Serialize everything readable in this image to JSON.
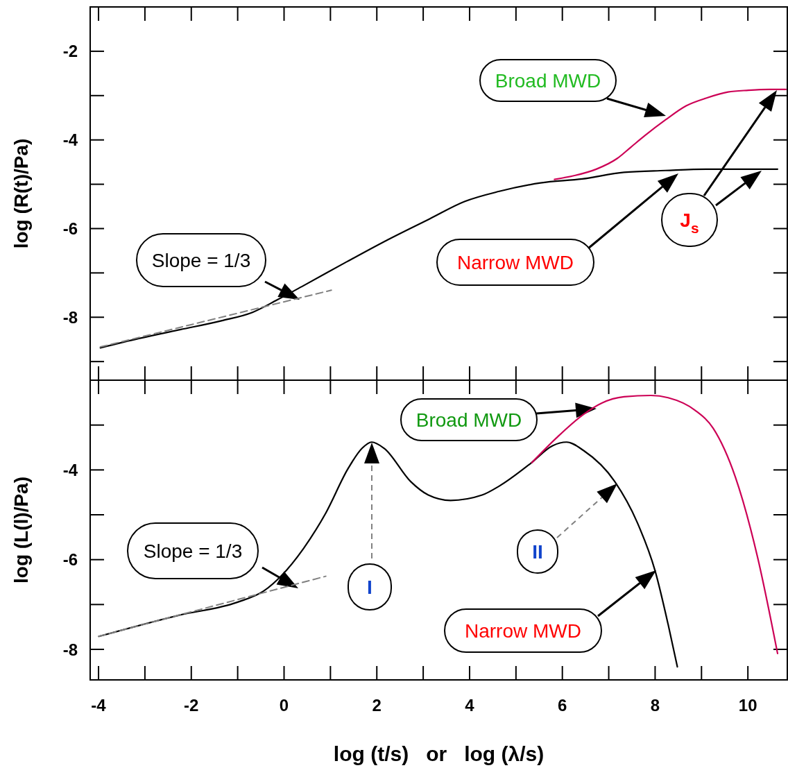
{
  "chart_data": [
    {
      "type": "line",
      "ylabel": "log (R(t)/Pa)",
      "xlim": [
        -4.18,
        10.85
      ],
      "ylim": [
        -9.42,
        -1.0
      ],
      "tick_labels": "y",
      "xticks": [
        -4,
        -2,
        0,
        2,
        4,
        6,
        8,
        10
      ],
      "yticks": [
        -8,
        -6,
        -4,
        -2
      ],
      "series": [
        {
          "color": "#000000",
          "x": [
            -3.96,
            -3.13,
            -2.24,
            -1.35,
            -0.68,
            -0.15,
            0.45,
            1.35,
            2.24,
            3.14,
            3.89,
            4.64,
            5.53,
            6.43,
            7.33,
            8.22,
            9.12,
            10.01,
            10.64
          ],
          "values": [
            -8.69,
            -8.48,
            -8.28,
            -8.08,
            -7.89,
            -7.61,
            -7.27,
            -6.75,
            -6.25,
            -5.78,
            -5.39,
            -5.16,
            -4.97,
            -4.88,
            -4.73,
            -4.69,
            -4.66,
            -4.66,
            -4.66
          ]
        },
        {
          "color": "#cc0055",
          "x": [
            5.83,
            6.28,
            6.73,
            7.18,
            7.47,
            7.77,
            8.22,
            8.67,
            9.12,
            9.57,
            10.01,
            10.46,
            10.82
          ],
          "values": [
            -4.89,
            -4.8,
            -4.66,
            -4.42,
            -4.17,
            -3.91,
            -3.55,
            -3.23,
            -3.05,
            -2.92,
            -2.88,
            -2.86,
            -2.86
          ]
        },
        {
          "color": "#808080",
          "line_style": "dashed",
          "x": [
            -3.96,
            1.02
          ],
          "values": [
            -8.67,
            -7.39
          ]
        }
      ],
      "annotations": [
        "Broad MWD",
        "Slope = 1/3",
        "Narrow MWD",
        "J$_{s}$"
      ]
    },
    {
      "type": "line",
      "ylabel": "log (L(l)/Pa)",
      "xlabel": "log (t/s)   or   log (λ/s)",
      "xlim": [
        -4.18,
        10.85
      ],
      "ylim": [
        -8.68,
        -2.0
      ],
      "xticks": [
        -4,
        -2,
        0,
        2,
        4,
        6,
        8,
        10
      ],
      "yticks": [
        -8,
        -6,
        -4
      ],
      "series": [
        {
          "color": "#000000",
          "x": [
            -3.99,
            -2.27,
            -1.01,
            -0.44,
            -0.06,
            0.42,
            0.9,
            1.38,
            1.68,
            1.89,
            2.16,
            2.73,
            3.11,
            3.59,
            4.27,
            4.64,
            5.31,
            5.79,
            6.09,
            6.46,
            7.13,
            7.61,
            8.0,
            8.28,
            8.48
          ],
          "values": [
            -7.71,
            -7.24,
            -6.95,
            -6.7,
            -6.36,
            -5.75,
            -4.96,
            -3.97,
            -3.52,
            -3.38,
            -3.52,
            -4.26,
            -4.56,
            -4.68,
            -4.56,
            -4.36,
            -3.86,
            -3.46,
            -3.38,
            -3.57,
            -4.26,
            -5.16,
            -6.25,
            -7.44,
            -8.39
          ]
        },
        {
          "color": "#cc0055",
          "x": [
            5.34,
            5.89,
            6.46,
            6.85,
            7.33,
            7.91,
            8.28,
            8.86,
            9.25,
            9.73,
            10.21,
            10.64
          ],
          "values": [
            -3.84,
            -3.27,
            -2.76,
            -2.51,
            -2.37,
            -2.34,
            -2.39,
            -2.67,
            -3.07,
            -4.16,
            -5.95,
            -8.09
          ]
        },
        {
          "color": "#808080",
          "line_style": "dashed",
          "x": [
            -4.0,
            0.9
          ],
          "values": [
            -7.71,
            -6.37
          ]
        }
      ],
      "annotations": [
        "Broad MWD",
        "Slope = 1/3",
        "I",
        "II",
        "Narrow MWD"
      ]
    }
  ]
}
